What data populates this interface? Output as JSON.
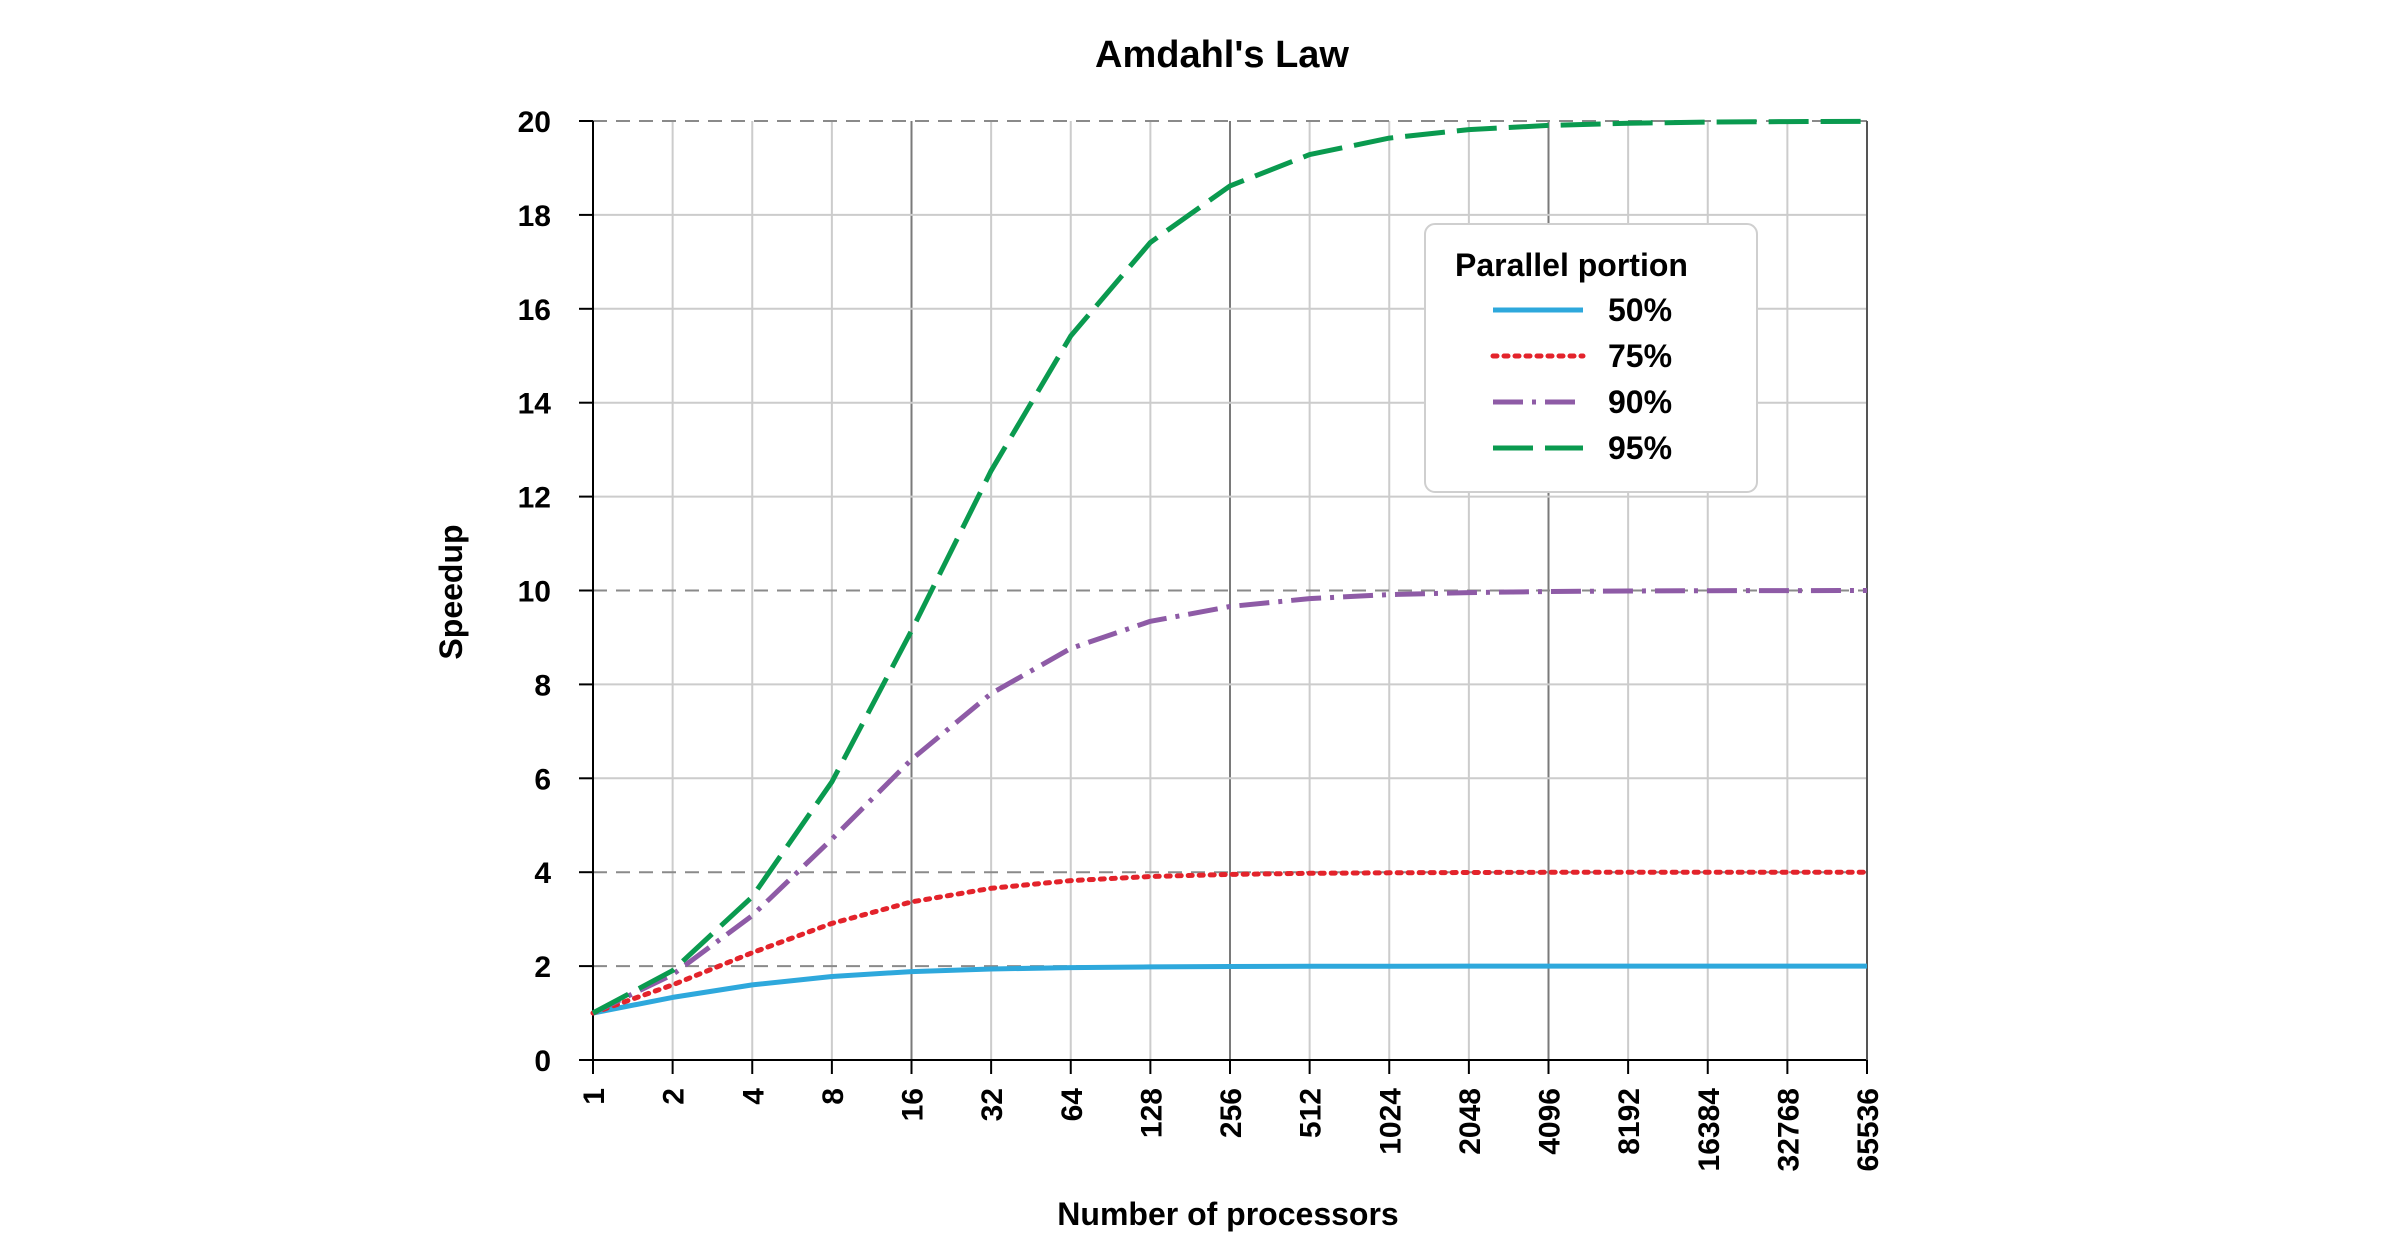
{
  "chart_data": {
    "type": "line",
    "title": "Amdahl's Law",
    "xlabel": "Number of processors",
    "ylabel": "Speedup",
    "x_scale": "log2",
    "x": [
      1,
      2,
      4,
      8,
      16,
      32,
      64,
      128,
      256,
      512,
      1024,
      2048,
      4096,
      8192,
      16384,
      32768,
      65536
    ],
    "x_tick_labels": [
      "1",
      "2",
      "4",
      "8",
      "16",
      "32",
      "64",
      "128",
      "256",
      "512",
      "1024",
      "2048",
      "4096",
      "8192",
      "16384",
      "32768",
      "65536"
    ],
    "y_ticks": [
      "0",
      "2",
      "4",
      "6",
      "8",
      "10",
      "12",
      "14",
      "16",
      "18",
      "20"
    ],
    "ylim": [
      0,
      20
    ],
    "grid": true,
    "legend": {
      "title": "Parallel portion",
      "placement": "top-right"
    },
    "series": [
      {
        "name": "50%",
        "color": "#2ea8dc",
        "style": "solid",
        "values": [
          1.0,
          1.333,
          1.6,
          1.778,
          1.882,
          1.939,
          1.969,
          1.984,
          1.992,
          1.996,
          1.998,
          1.999,
          2.0,
          2.0,
          2.0,
          2.0,
          2.0
        ]
      },
      {
        "name": "75%",
        "color": "#e3232b",
        "style": "dotted",
        "values": [
          1.0,
          1.6,
          2.286,
          2.909,
          3.368,
          3.657,
          3.821,
          3.908,
          3.953,
          3.977,
          3.988,
          3.994,
          3.997,
          3.999,
          3.999,
          4.0,
          4.0
        ]
      },
      {
        "name": "90%",
        "color": "#8e5ba6",
        "style": "dash-dot",
        "values": [
          1.0,
          1.818,
          3.077,
          4.706,
          6.4,
          7.805,
          8.767,
          9.343,
          9.66,
          9.827,
          9.913,
          9.956,
          9.978,
          9.989,
          9.995,
          9.997,
          9.999
        ]
      },
      {
        "name": "95%",
        "color": "#0a9a4f",
        "style": "dashed",
        "values": [
          1.0,
          1.905,
          3.478,
          5.926,
          9.143,
          12.549,
          15.422,
          17.415,
          18.618,
          19.284,
          19.635,
          19.816,
          19.907,
          19.954,
          19.977,
          19.988,
          19.994
        ]
      }
    ]
  }
}
